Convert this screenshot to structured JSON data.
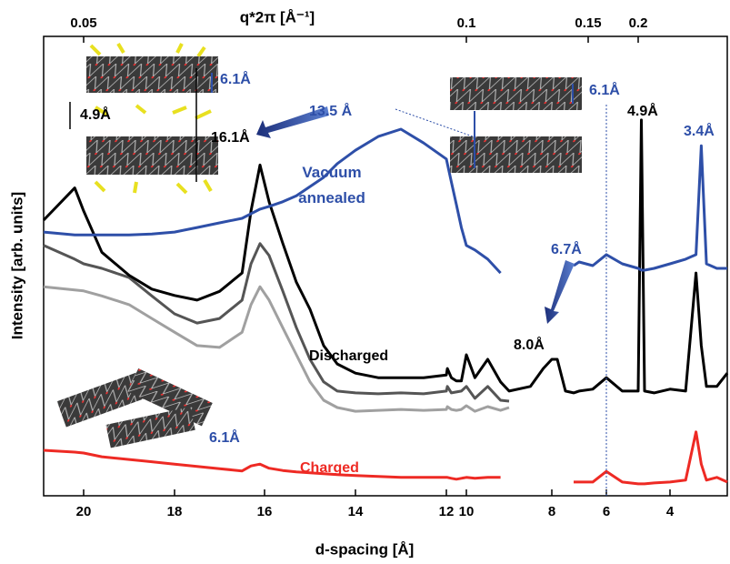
{
  "chart_data": {
    "type": "line",
    "x_label": "d-spacing [Å]",
    "y_label": "Intensity [arb. units]",
    "top_axis_label": "q*2π [Å⁻¹]",
    "top_xticks": [
      0.05,
      0.1,
      0.15,
      0.2
    ],
    "xlim": [
      20.9,
      2.9
    ],
    "xticks": [
      20,
      18,
      16,
      14,
      12,
      10,
      8,
      6,
      4
    ],
    "ylim": [
      0,
      100
    ],
    "x": [
      20.9,
      20.2,
      20.0,
      19.6,
      19,
      18.5,
      18,
      17.5,
      17,
      16.5,
      16.3,
      16.1,
      15.9,
      15.6,
      15.3,
      15,
      14.7,
      14.4,
      14,
      13.5,
      13,
      12.5,
      12,
      11.9,
      11.5,
      11,
      10.5,
      10,
      9.8,
      9.5,
      9.2,
      9.0,
      8.5,
      8.2,
      8.0,
      7.8,
      7.5,
      7.2,
      7,
      6.5,
      6.0,
      5.5,
      5.0,
      4.9,
      4.8,
      4.5,
      4.0,
      3.7,
      3.5,
      3.4,
      3.3,
      3.1,
      2.9
    ],
    "series": [
      {
        "color": "#ee2a24",
        "values": [
          9.9,
          9.5,
          9.3,
          8.5,
          7.9,
          7.4,
          6.9,
          6.4,
          5.9,
          5.4,
          6.5,
          6.9,
          6.0,
          5.5,
          5.2,
          5.0,
          4.8,
          4.6,
          4.4,
          4.2,
          4.0,
          4.0,
          4.0,
          4.0,
          3.8,
          3.6,
          3.8,
          4.0,
          3.8,
          4.0,
          4.0,
          null,
          null,
          null,
          null,
          null,
          null,
          3.0,
          3.0,
          3.0,
          5.3,
          3.0,
          2.6,
          2.6,
          2.6,
          2.8,
          3.0,
          3.4,
          13.9,
          6.9,
          3.4,
          4.0,
          3.0
        ]
      },
      {
        "color": "#a0a0a0",
        "values": [
          45.5,
          44.8,
          44.6,
          43.5,
          41.6,
          38.6,
          35.6,
          32.7,
          32.3,
          35.6,
          41.6,
          45.5,
          42.6,
          36.6,
          30.7,
          24.8,
          20.8,
          19.2,
          18.4,
          18.6,
          18.8,
          18.6,
          18.8,
          19.4,
          18.8,
          18.6,
          18.8,
          19.6,
          18.4,
          19.4,
          18.6,
          19.2,
          null,
          null,
          null,
          null,
          null,
          null,
          null,
          null,
          null,
          null,
          null,
          null,
          null,
          null,
          null,
          null,
          null,
          null,
          null,
          null,
          null
        ]
      },
      {
        "color": "#555555",
        "values": [
          54.5,
          51.5,
          50.5,
          49.5,
          47.5,
          43.5,
          39.6,
          37.6,
          38.6,
          42.6,
          50.5,
          54.9,
          52.3,
          44.6,
          36.6,
          29.7,
          24.8,
          22.8,
          22.4,
          22.2,
          22.4,
          22.2,
          22.8,
          23.8,
          22.4,
          22.6,
          22.8,
          23.8,
          21.2,
          23.8,
          20.8,
          20.6,
          null,
          null,
          null,
          null,
          null,
          null,
          null,
          null,
          null,
          null,
          null,
          null,
          null,
          null,
          null,
          null,
          null,
          null,
          null,
          null,
          null
        ]
      },
      {
        "color": "#000000",
        "values": [
          60.0,
          67.0,
          62.0,
          53.0,
          48.0,
          45.0,
          43.6,
          42.6,
          44.5,
          48.5,
          62.0,
          72.0,
          64.0,
          55.0,
          46.5,
          40.6,
          32.7,
          28.7,
          26.7,
          25.7,
          25.7,
          25.7,
          26.3,
          27.7,
          25.7,
          25.0,
          25.0,
          30.7,
          25.7,
          29.7,
          24.8,
          22.8,
          23.8,
          27.7,
          29.7,
          29.7,
          22.8,
          22.4,
          22.8,
          23.2,
          25.7,
          22.8,
          22.8,
          81.8,
          22.8,
          22.4,
          23.2,
          22.8,
          48.5,
          32.7,
          23.8,
          23.8,
          26.7
        ]
      },
      {
        "color": "#2e4fa8",
        "values": [
          57.4,
          56.8,
          56.8,
          56.8,
          56.8,
          57.0,
          57.4,
          58.4,
          59.4,
          60.4,
          61.4,
          62.4,
          63.0,
          64.0,
          65.3,
          67.3,
          69.3,
          72.3,
          75.2,
          78.2,
          79.8,
          76.8,
          73.3,
          72.3,
          68.3,
          63.4,
          58.4,
          54.5,
          53.5,
          51.5,
          48.5,
          null,
          null,
          null,
          null,
          null,
          null,
          50.1,
          50.9,
          50.1,
          52.5,
          50.5,
          49.5,
          49.1,
          49.1,
          49.5,
          50.5,
          51.5,
          52.5,
          76.2,
          50.5,
          49.5,
          49.5
        ]
      }
    ],
    "annotations": [
      {
        "text": "6.1Å",
        "color": "#2e4fa8"
      },
      {
        "text": "4.9Å",
        "color": "#000000"
      },
      {
        "text": "16.1Å",
        "color": "#000000"
      },
      {
        "text": "13.5 Å",
        "color": "#2e4fa8"
      },
      {
        "text": "6.1Å",
        "color": "#2e4fa8"
      },
      {
        "text": "4.9Å",
        "color": "#000000"
      },
      {
        "text": "3.4Å",
        "color": "#2e4fa8"
      },
      {
        "text": "Vacuum annealed",
        "color": "#2e4fa8"
      },
      {
        "text": "6.7Å",
        "color": "#2e4fa8"
      },
      {
        "text": "8.0Å",
        "color": "#000000"
      },
      {
        "text": "Discharged",
        "color": "#000000"
      },
      {
        "text": "6.1Å",
        "color": "#2e4fa8"
      },
      {
        "text": "Charged",
        "color": "#ee2a24"
      }
    ]
  }
}
